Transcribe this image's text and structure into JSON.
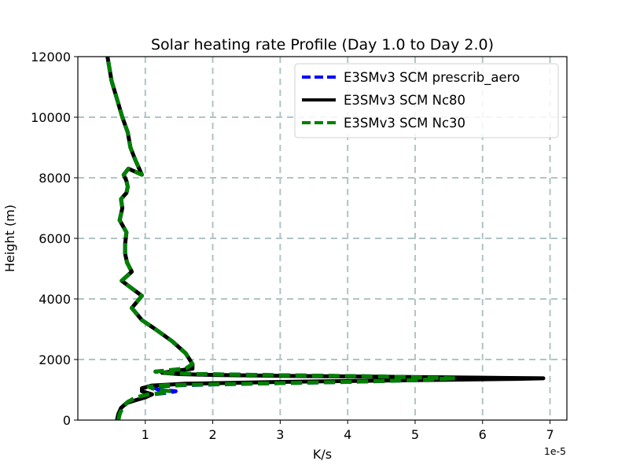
{
  "chart_data": {
    "type": "line",
    "title": "Solar heating rate Profile (Day 1.0 to Day 2.0)",
    "xlabel": "K/s",
    "ylabel": "Height (m)",
    "x_offset_label": "1e-5",
    "xlim": [
      0.0,
      7.25
    ],
    "ylim": [
      0,
      12000
    ],
    "xticks": [
      1,
      2,
      3,
      4,
      5,
      6,
      7
    ],
    "yticks": [
      0,
      2000,
      4000,
      6000,
      8000,
      10000,
      12000
    ],
    "xtick_labels": [
      "1",
      "2",
      "3",
      "4",
      "5",
      "6",
      "7"
    ],
    "ytick_labels": [
      "0",
      "2000",
      "4000",
      "6000",
      "8000",
      "10000",
      "12000"
    ],
    "grid": true,
    "legend_position": "top-right",
    "series": [
      {
        "name": "E3SMv3 SCM prescrib_aero",
        "color": "#0000ff",
        "style": "dashed",
        "x": [
          0.6,
          0.62,
          0.66,
          0.74,
          0.88,
          1.1,
          1.3,
          1.45,
          1.2,
          1.15,
          1.12,
          1.5,
          2.5,
          4.0,
          5.0,
          5.6,
          4.5,
          3.0,
          1.8,
          1.3,
          1.15,
          1.6,
          1.7,
          1.6,
          1.4,
          1.15,
          0.95,
          0.8,
          0.95,
          0.65,
          0.8,
          0.73,
          0.7,
          0.7,
          0.72,
          0.62,
          0.66,
          0.64,
          0.72,
          0.74,
          0.72,
          0.68,
          0.75,
          0.95,
          0.85,
          0.78,
          0.74,
          0.66,
          0.58,
          0.5,
          0.44
        ],
        "y": [
          0,
          200,
          400,
          600,
          750,
          850,
          900,
          950,
          1000,
          1050,
          1100,
          1150,
          1200,
          1260,
          1320,
          1380,
          1440,
          1480,
          1520,
          1560,
          1600,
          1700,
          1850,
          2200,
          2600,
          3000,
          3300,
          3700,
          4100,
          4600,
          4900,
          5200,
          5500,
          5800,
          6200,
          6600,
          7000,
          7300,
          7500,
          7700,
          7900,
          8100,
          8300,
          8100,
          8600,
          9000,
          9500,
          10000,
          10600,
          11200,
          12000
        ]
      },
      {
        "name": "E3SMv3 SCM Nc80",
        "color": "#000000",
        "style": "solid",
        "x": [
          0.58,
          0.6,
          0.64,
          0.72,
          0.86,
          1.0,
          1.1,
          0.95,
          0.95,
          1.1,
          1.6,
          3.0,
          5.0,
          6.5,
          6.9,
          6.0,
          4.5,
          3.0,
          2.0,
          1.5,
          1.25,
          1.7,
          1.7,
          1.6,
          1.4,
          1.15,
          0.95,
          0.8,
          0.95,
          0.65,
          0.8,
          0.73,
          0.7,
          0.7,
          0.72,
          0.62,
          0.66,
          0.64,
          0.72,
          0.74,
          0.72,
          0.68,
          0.75,
          0.95,
          0.85,
          0.78,
          0.74,
          0.66,
          0.58,
          0.5,
          0.44
        ],
        "y": [
          0,
          200,
          400,
          560,
          660,
          750,
          850,
          950,
          1050,
          1140,
          1200,
          1260,
          1320,
          1360,
          1380,
          1400,
          1430,
          1460,
          1490,
          1520,
          1560,
          1700,
          1850,
          2200,
          2600,
          3000,
          3300,
          3700,
          4100,
          4600,
          4900,
          5200,
          5500,
          5800,
          6200,
          6600,
          7000,
          7300,
          7500,
          7700,
          7900,
          8100,
          8300,
          8100,
          8600,
          9000,
          9500,
          10000,
          10600,
          11200,
          12000
        ]
      },
      {
        "name": "E3SMv3 SCM Nc30",
        "color": "#008000",
        "style": "dashed",
        "x": [
          0.6,
          0.62,
          0.66,
          0.74,
          0.86,
          1.05,
          1.25,
          1.38,
          1.2,
          1.1,
          1.05,
          1.3,
          2.5,
          4.0,
          5.0,
          5.6,
          4.5,
          3.0,
          1.8,
          1.3,
          1.15,
          1.6,
          1.7,
          1.6,
          1.4,
          1.15,
          0.95,
          0.8,
          0.95,
          0.65,
          0.8,
          0.73,
          0.7,
          0.7,
          0.72,
          0.62,
          0.66,
          0.64,
          0.72,
          0.74,
          0.72,
          0.68,
          0.75,
          0.95,
          0.85,
          0.78,
          0.74,
          0.66,
          0.58,
          0.5,
          0.44
        ],
        "y": [
          0,
          200,
          400,
          600,
          750,
          850,
          900,
          950,
          1000,
          1050,
          1100,
          1150,
          1200,
          1260,
          1320,
          1380,
          1440,
          1480,
          1520,
          1560,
          1600,
          1700,
          1850,
          2200,
          2600,
          3000,
          3300,
          3700,
          4100,
          4600,
          4900,
          5200,
          5500,
          5800,
          6200,
          6600,
          7000,
          7300,
          7500,
          7700,
          7900,
          8100,
          8300,
          8100,
          8600,
          9000,
          9500,
          10000,
          10600,
          11200,
          12000
        ]
      }
    ]
  }
}
